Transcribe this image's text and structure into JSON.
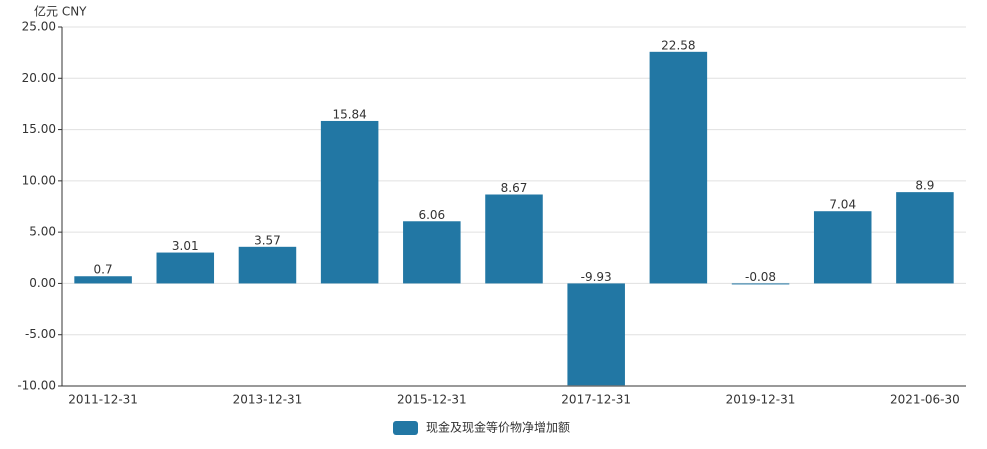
{
  "chart_data": {
    "type": "bar",
    "y_axis_label": "亿元  CNY",
    "categories": [
      "2011-12-31",
      null,
      "2013-12-31",
      null,
      "2015-12-31",
      null,
      "2017-12-31",
      null,
      "2019-12-31",
      null,
      "2021-06-30"
    ],
    "series": [
      {
        "name": "现金及现金等价物净增加额",
        "color": "#2277a4",
        "values": [
          0.7,
          3.01,
          3.57,
          15.84,
          6.06,
          8.67,
          -9.93,
          22.58,
          -0.08,
          7.04,
          8.9
        ]
      }
    ],
    "ylim": [
      -10,
      25
    ],
    "yticks": [
      {
        "value": -10,
        "label": "-10.00"
      },
      {
        "value": -5,
        "label": "-5.00"
      },
      {
        "value": 0,
        "label": "0.00"
      },
      {
        "value": 5,
        "label": "5.00"
      },
      {
        "value": 10,
        "label": "10.00"
      },
      {
        "value": 15,
        "label": "15.00"
      },
      {
        "value": 20,
        "label": "20.00"
      },
      {
        "value": 25,
        "label": "25.00"
      }
    ],
    "grid": true
  }
}
